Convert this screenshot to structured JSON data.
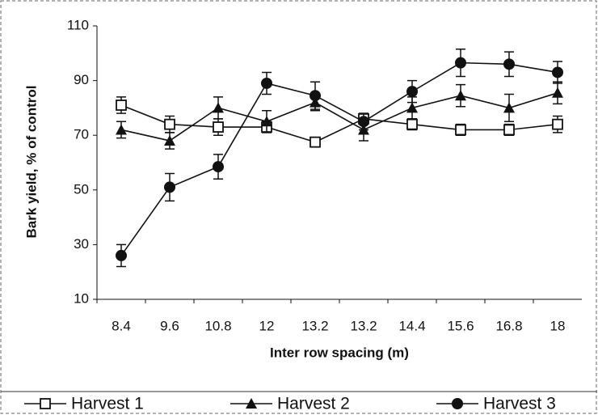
{
  "chart_data": {
    "type": "line",
    "xlabel": "Inter row spacing (m)",
    "ylabel": "Bark yield, % of control",
    "categories": [
      "8.4",
      "9.6",
      "10.8",
      "12",
      "13.2",
      "13.2",
      "14.4",
      "15.6",
      "16.8",
      "18"
    ],
    "series": [
      {
        "name": "Harvest 1",
        "color": "#111111",
        "marker": "square-open",
        "values": [
          81,
          74,
          73,
          73,
          67.5,
          76,
          74,
          72,
          72,
          74
        ],
        "errors": [
          3,
          3,
          3,
          2,
          1,
          2,
          2,
          2,
          2,
          3
        ]
      },
      {
        "name": "Harvest 2",
        "color": "#111111",
        "marker": "triangle",
        "values": [
          72,
          68,
          80,
          75,
          82,
          72,
          80,
          84.5,
          80,
          85.5
        ],
        "errors": [
          3,
          3,
          4,
          4,
          3,
          4,
          4,
          4,
          5,
          4
        ]
      },
      {
        "name": "Harvest 3",
        "color": "#111111",
        "marker": "circle",
        "values": [
          26,
          51,
          58.5,
          89,
          84.5,
          75,
          86,
          96.5,
          96,
          93
        ],
        "errors": [
          4,
          5,
          4.5,
          4,
          5,
          3,
          4,
          5,
          4.5,
          4
        ]
      }
    ],
    "ylim": [
      10,
      110
    ],
    "yticks": [
      10,
      30,
      50,
      70,
      90,
      110
    ]
  }
}
